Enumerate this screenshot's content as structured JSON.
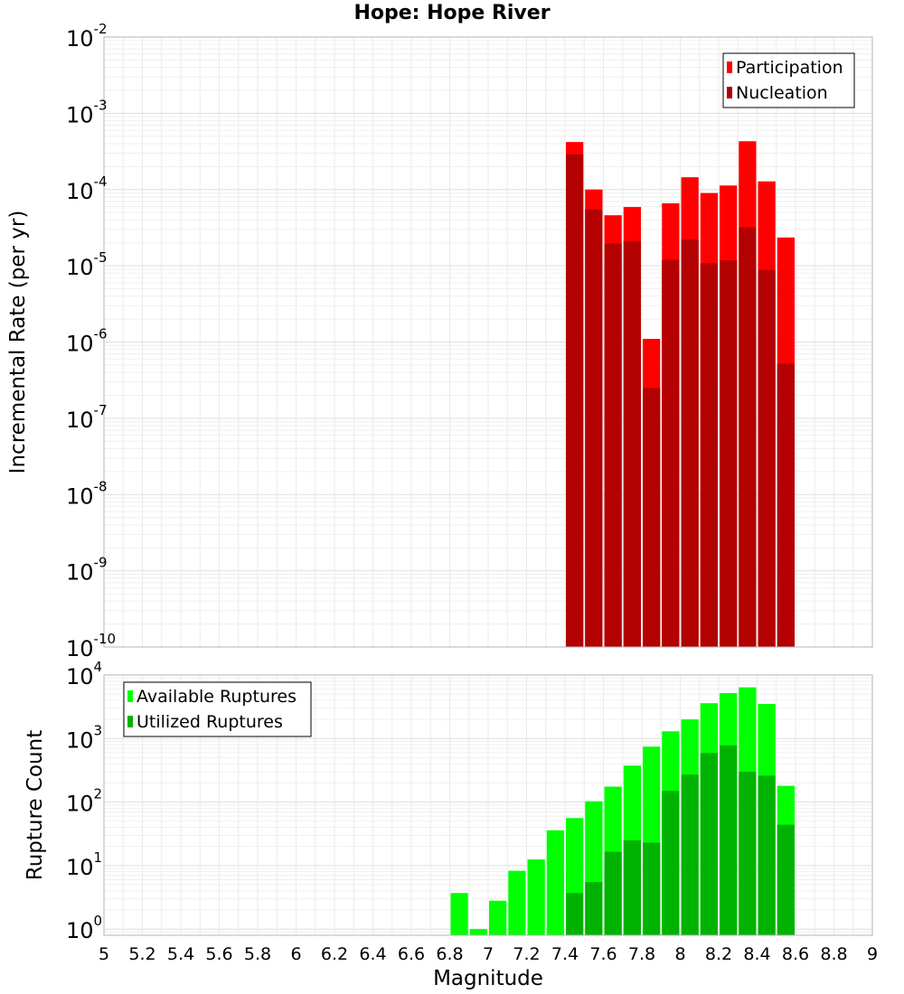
{
  "title": "Hope: Hope River",
  "chart_data": [
    {
      "type": "bar",
      "ylabel": "Incremental Rate (per yr)",
      "xlabel": "",
      "xlim": [
        5,
        9
      ],
      "ylim": [
        1e-10,
        0.01
      ],
      "yscale": "log",
      "grid": true,
      "legend_position": "top-right",
      "bar_width": 0.1,
      "x": [
        7.45,
        7.55,
        7.65,
        7.75,
        7.85,
        7.95,
        8.05,
        8.15,
        8.25,
        8.35,
        8.45,
        8.55
      ],
      "series": [
        {
          "name": "Participation",
          "color": "#ff0000",
          "values": [
            0.00042,
            0.0001,
            4.6e-05,
            5.9e-05,
            1.1e-06,
            6.6e-05,
            0.000145,
            9e-05,
            0.000113,
            0.00043,
            0.000128,
            2.35e-05
          ]
        },
        {
          "name": "Nucleation",
          "color": "#b30000",
          "values": [
            0.00029,
            5.5e-05,
            1.95e-05,
            2.1e-05,
            2.5e-07,
            1.2e-05,
            2.2e-05,
            1.08e-05,
            1.18e-05,
            3.2e-05,
            8.8e-06,
            5.2e-07
          ]
        }
      ],
      "ytick_labels": [
        {
          "base": "10",
          "exp": "-10"
        },
        {
          "base": "10",
          "exp": "-9"
        },
        {
          "base": "10",
          "exp": "-8"
        },
        {
          "base": "10",
          "exp": "-7"
        },
        {
          "base": "10",
          "exp": "-6"
        },
        {
          "base": "10",
          "exp": "-5"
        },
        {
          "base": "10",
          "exp": "-4"
        },
        {
          "base": "10",
          "exp": "-3"
        },
        {
          "base": "10",
          "exp": "-2"
        }
      ]
    },
    {
      "type": "bar",
      "ylabel": "Rupture Count",
      "xlabel": "Magnitude",
      "xlim": [
        5,
        9
      ],
      "ylim": [
        0.8,
        10000
      ],
      "yscale": "log",
      "grid": true,
      "legend_position": "top-left",
      "bar_width": 0.1,
      "x": [
        6.85,
        6.95,
        7.05,
        7.15,
        7.25,
        7.35,
        7.45,
        7.55,
        7.65,
        7.75,
        7.85,
        7.95,
        8.05,
        8.15,
        8.25,
        8.35,
        8.45,
        8.55
      ],
      "series": [
        {
          "name": "Available Ruptures",
          "color": "#00ff00",
          "values": [
            3.7,
            1,
            2.8,
            8.3,
            12.5,
            36,
            56,
            103,
            175,
            375,
            745,
            1300,
            2000,
            3600,
            5200,
            6400,
            3500,
            180
          ]
        },
        {
          "name": "Utilized Ruptures",
          "color": "#00b300",
          "values": [
            0,
            0,
            0,
            0,
            0,
            0,
            3.7,
            5.5,
            16.5,
            25,
            23,
            150,
            270,
            590,
            780,
            300,
            260,
            44
          ]
        }
      ],
      "ytick_labels": [
        {
          "base": "10",
          "exp": "0"
        },
        {
          "base": "10",
          "exp": "1"
        },
        {
          "base": "10",
          "exp": "2"
        },
        {
          "base": "10",
          "exp": "3"
        },
        {
          "base": "10",
          "exp": "4"
        }
      ],
      "xtick_labels": [
        "5",
        "5.2",
        "5.4",
        "5.6",
        "5.8",
        "6",
        "6.2",
        "6.4",
        "6.6",
        "6.8",
        "7",
        "7.2",
        "7.4",
        "7.6",
        "7.8",
        "8",
        "8.2",
        "8.4",
        "8.6",
        "8.8",
        "9"
      ]
    }
  ]
}
